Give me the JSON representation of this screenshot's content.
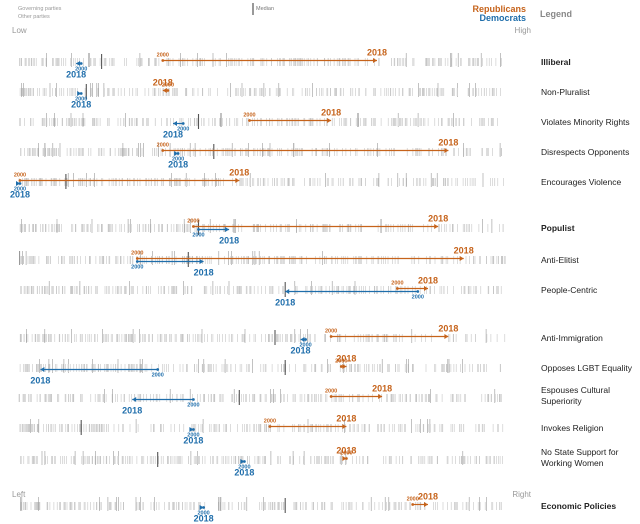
{
  "chart_data": {
    "type": "strip",
    "title": "",
    "legend": {
      "governing_label": "Governing parties",
      "other_label": "Other parties",
      "median_label": "Median",
      "republicans_label": "Republicans",
      "democrats_label": "Democrats",
      "legend_title": "Legend"
    },
    "scale_labels": {
      "low": "Low",
      "high": "High",
      "left": "Left",
      "right": "Right"
    },
    "x_domain": [
      0,
      1
    ],
    "colors": {
      "republicans": "#c6631b",
      "democrats": "#1f6eab",
      "parties": "#b3b3b3",
      "median": "#555555",
      "label": "#222222"
    },
    "rows": [
      {
        "label": "Illiberal",
        "bold": true,
        "median": 0.16,
        "rep": {
          "from": 0.28,
          "to": 0.7,
          "label_2000": "2000",
          "label_2018": "2018"
        },
        "dem": {
          "from": 0.12,
          "to": 0.11,
          "label_2000": "2000",
          "label_2018": "2018"
        }
      },
      {
        "label": "Non-Pluralist",
        "bold": false,
        "median": 0.13,
        "rep": {
          "from": 0.29,
          "to": 0.28,
          "label_2000": "2000",
          "label_2018": "2018"
        },
        "dem": {
          "from": 0.12,
          "to": 0.12,
          "label_2000": "2000",
          "label_2018": "2018"
        }
      },
      {
        "label": "Violates Minority Rights",
        "bold": false,
        "median": 0.35,
        "rep": {
          "from": 0.45,
          "to": 0.61,
          "label_2000": "2000",
          "label_2018": "2018"
        },
        "dem": {
          "from": 0.32,
          "to": 0.3,
          "label_2000": "2000",
          "label_2018": "2018"
        }
      },
      {
        "label": "Disrespects Opponents",
        "bold": false,
        "median": 0.38,
        "rep": {
          "from": 0.28,
          "to": 0.84,
          "label_2000": "2000",
          "label_2018": "2018"
        },
        "dem": {
          "from": 0.31,
          "to": 0.31,
          "label_2000": "2000",
          "label_2018": "2018"
        }
      },
      {
        "label": "Encourages Violence",
        "bold": false,
        "median": 0.09,
        "rep": {
          "from": 0.0,
          "to": 0.43,
          "label_2000": "2000",
          "label_2018": "2018"
        },
        "dem": {
          "from": 0.0,
          "to": 0.0,
          "label_2000": "2000",
          "label_2018": "2018"
        }
      },
      {
        "label": "Populist",
        "bold": true,
        "median": 0.35,
        "rep": {
          "from": 0.34,
          "to": 0.82,
          "label_2000": "2000",
          "label_2018": "2018"
        },
        "dem": {
          "from": 0.35,
          "to": 0.41,
          "label_2000": "2000",
          "label_2018": "2018"
        }
      },
      {
        "label": "Anti-Elitist",
        "bold": false,
        "median": 0.33,
        "rep": {
          "from": 0.23,
          "to": 0.87,
          "label_2000": "2000",
          "label_2018": "2018"
        },
        "dem": {
          "from": 0.23,
          "to": 0.36,
          "label_2000": "2000",
          "label_2018": "2018"
        }
      },
      {
        "label": "People-Centric",
        "bold": false,
        "median": 0.52,
        "rep": {
          "from": 0.74,
          "to": 0.8,
          "label_2000": "2000",
          "label_2018": "2018"
        },
        "dem": {
          "from": 0.78,
          "to": 0.52,
          "label_2000": "2000",
          "label_2018": "2018"
        }
      },
      {
        "label": "Anti-Immigration",
        "bold": false,
        "median": 0.5,
        "rep": {
          "from": 0.61,
          "to": 0.84,
          "label_2000": "2000",
          "label_2018": "2018"
        },
        "dem": {
          "from": 0.56,
          "to": 0.55,
          "label_2000": "2000",
          "label_2018": "2018"
        }
      },
      {
        "label": "Opposes LGBT Equality",
        "bold": false,
        "median": 0.52,
        "rep": {
          "from": 0.63,
          "to": 0.64,
          "label_2000": "2000",
          "label_2018": "2018"
        },
        "dem": {
          "from": 0.27,
          "to": 0.04,
          "label_2000": "2000",
          "label_2018": "2018"
        }
      },
      {
        "label": "Espouses Cultural Superiority",
        "bold": false,
        "median": 0.43,
        "rep": {
          "from": 0.61,
          "to": 0.71,
          "label_2000": "2000",
          "label_2018": "2018"
        },
        "dem": {
          "from": 0.34,
          "to": 0.22,
          "label_2000": "2000",
          "label_2018": "2018"
        }
      },
      {
        "label": "Invokes Religion",
        "bold": false,
        "median": 0.12,
        "rep": {
          "from": 0.49,
          "to": 0.64,
          "label_2000": "2000",
          "label_2018": "2018"
        },
        "dem": {
          "from": 0.34,
          "to": 0.34,
          "label_2000": "2000",
          "label_2018": "2018"
        }
      },
      {
        "label": "No State Support for Working Women",
        "bold": false,
        "median": 0.27,
        "rep": {
          "from": 0.64,
          "to": 0.64,
          "label_2000": "2000",
          "label_2018": "2018"
        },
        "dem": {
          "from": 0.44,
          "to": 0.44,
          "label_2000": "2000",
          "label_2018": "2018"
        }
      },
      {
        "label": "Economic Policies",
        "bold": true,
        "median": 0.52,
        "rep": {
          "from": 0.77,
          "to": 0.8,
          "label_2000": "2000",
          "label_2018": "2018"
        },
        "dem": {
          "from": 0.36,
          "to": 0.36,
          "label_2000": "2000",
          "label_2018": "2018"
        }
      }
    ]
  }
}
